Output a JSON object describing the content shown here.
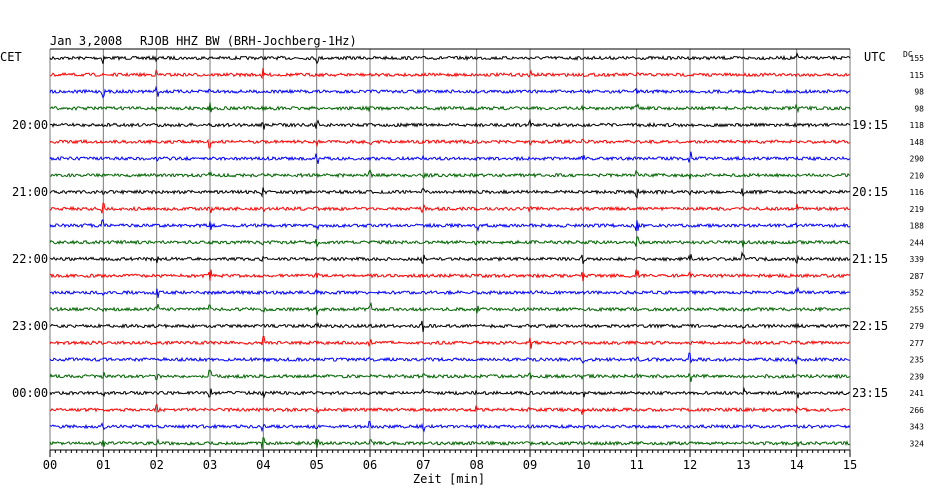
{
  "header": {
    "date": "Jan 3,2008",
    "station": "RJOB HHZ BW (BRH-Jochberg-1Hz)",
    "left_zone": "CET",
    "right_zone": "UTC",
    "dc_label": "DC"
  },
  "chart_data": {
    "type": "line",
    "title": "Jan 3,2008   RJOB HHZ BW (BRH-Jochberg-1Hz)",
    "xlabel": "Zeit [min]",
    "xlim": [
      0,
      15
    ],
    "x_ticks": [
      "00",
      "01",
      "02",
      "03",
      "04",
      "05",
      "06",
      "07",
      "08",
      "09",
      "10",
      "11",
      "12",
      "13",
      "14",
      "15"
    ],
    "grid": true,
    "trace_colors": [
      "#000000",
      "#ff0000",
      "#0000ff",
      "#006400"
    ],
    "dc_values": [
      "155",
      "115",
      "98",
      "98",
      "118",
      "148",
      "290",
      "210",
      "116",
      "219",
      "188",
      "244",
      "339",
      "287",
      "352",
      "255",
      "279",
      "277",
      "235",
      "239",
      "241",
      "266",
      "343",
      "324"
    ],
    "cet_labels": [
      {
        "row": 4,
        "text": "20:00"
      },
      {
        "row": 8,
        "text": "21:00"
      },
      {
        "row": 12,
        "text": "22:00"
      },
      {
        "row": 16,
        "text": "23:00"
      },
      {
        "row": 20,
        "text": "00:00"
      }
    ],
    "utc_labels": [
      {
        "row": 4,
        "text": "19:15"
      },
      {
        "row": 8,
        "text": "20:15"
      },
      {
        "row": 12,
        "text": "21:15"
      },
      {
        "row": 16,
        "text": "22:15"
      },
      {
        "row": 20,
        "text": "23:15"
      }
    ]
  }
}
